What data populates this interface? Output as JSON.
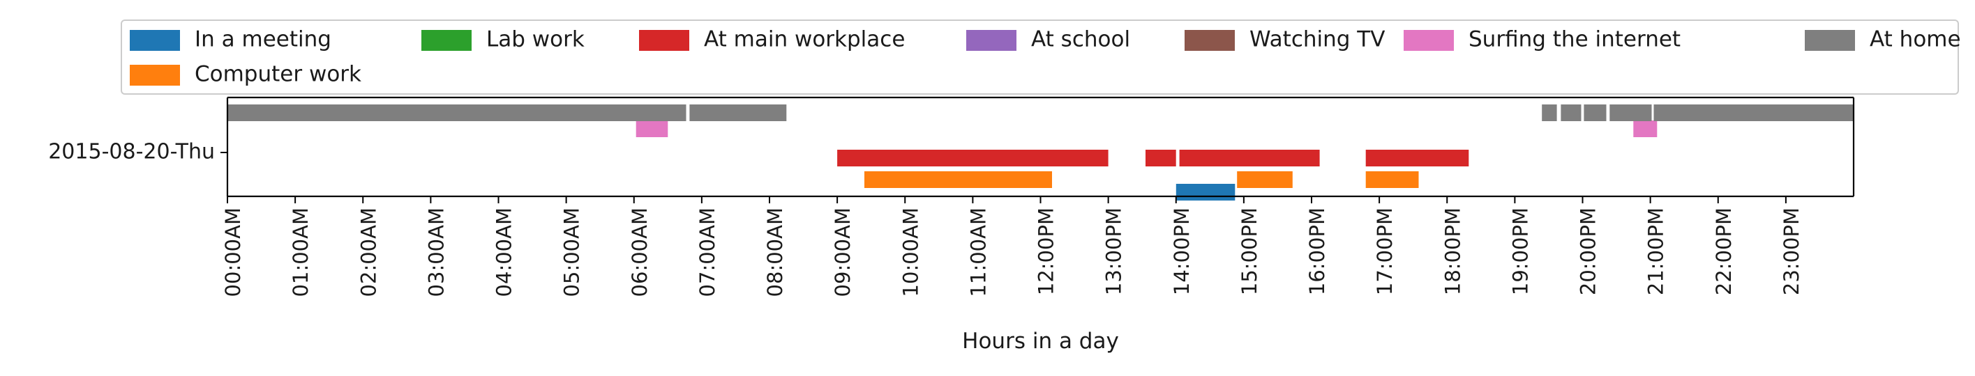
{
  "chart_data": {
    "type": "timeline",
    "title": "",
    "xlabel": "Hours in a day",
    "ylabel": "",
    "xlim_hours": [
      0,
      24
    ],
    "day_label": "2015-08-20-Thu",
    "x_ticks": [
      "00:00AM",
      "01:00AM",
      "02:00AM",
      "03:00AM",
      "04:00AM",
      "05:00AM",
      "06:00AM",
      "07:00AM",
      "08:00AM",
      "09:00AM",
      "10:00AM",
      "11:00AM",
      "12:00PM",
      "13:00PM",
      "14:00PM",
      "15:00PM",
      "16:00PM",
      "17:00PM",
      "18:00PM",
      "19:00PM",
      "20:00PM",
      "21:00PM",
      "22:00PM",
      "23:00PM"
    ],
    "legend_position": "top",
    "series": [
      {
        "name": "In a meeting",
        "color": "#1f77b4",
        "lane": 4,
        "intervals": [
          [
            14.0,
            14.87
          ]
        ]
      },
      {
        "name": "Lab work",
        "color": "#2ca02c",
        "lane": 2,
        "intervals": []
      },
      {
        "name": "At main workplace",
        "color": "#d62728",
        "lane": 2,
        "intervals": [
          [
            9.0,
            13.0
          ],
          [
            13.55,
            14.0
          ],
          [
            14.05,
            16.12
          ],
          [
            16.8,
            18.32
          ]
        ]
      },
      {
        "name": "At school",
        "color": "#9467bd",
        "lane": 2,
        "intervals": []
      },
      {
        "name": "Watching TV",
        "color": "#8c564b",
        "lane": 2,
        "intervals": []
      },
      {
        "name": "Surfing the internet",
        "color": "#e377c2",
        "lane": 1,
        "intervals": [
          [
            6.03,
            6.5
          ],
          [
            20.75,
            21.1
          ]
        ]
      },
      {
        "name": "At home",
        "color": "#7f7f7f",
        "lane": 0,
        "intervals": [
          [
            0.0,
            6.77
          ],
          [
            6.82,
            8.25
          ],
          [
            19.4,
            19.62
          ],
          [
            19.68,
            19.98
          ],
          [
            20.02,
            20.35
          ],
          [
            20.4,
            21.02
          ],
          [
            21.05,
            24.0
          ]
        ]
      },
      {
        "name": "Computer work",
        "color": "#ff7f0e",
        "lane": 3,
        "intervals": [
          [
            9.4,
            12.17
          ],
          [
            14.9,
            15.72
          ],
          [
            16.8,
            17.58
          ]
        ]
      }
    ]
  }
}
